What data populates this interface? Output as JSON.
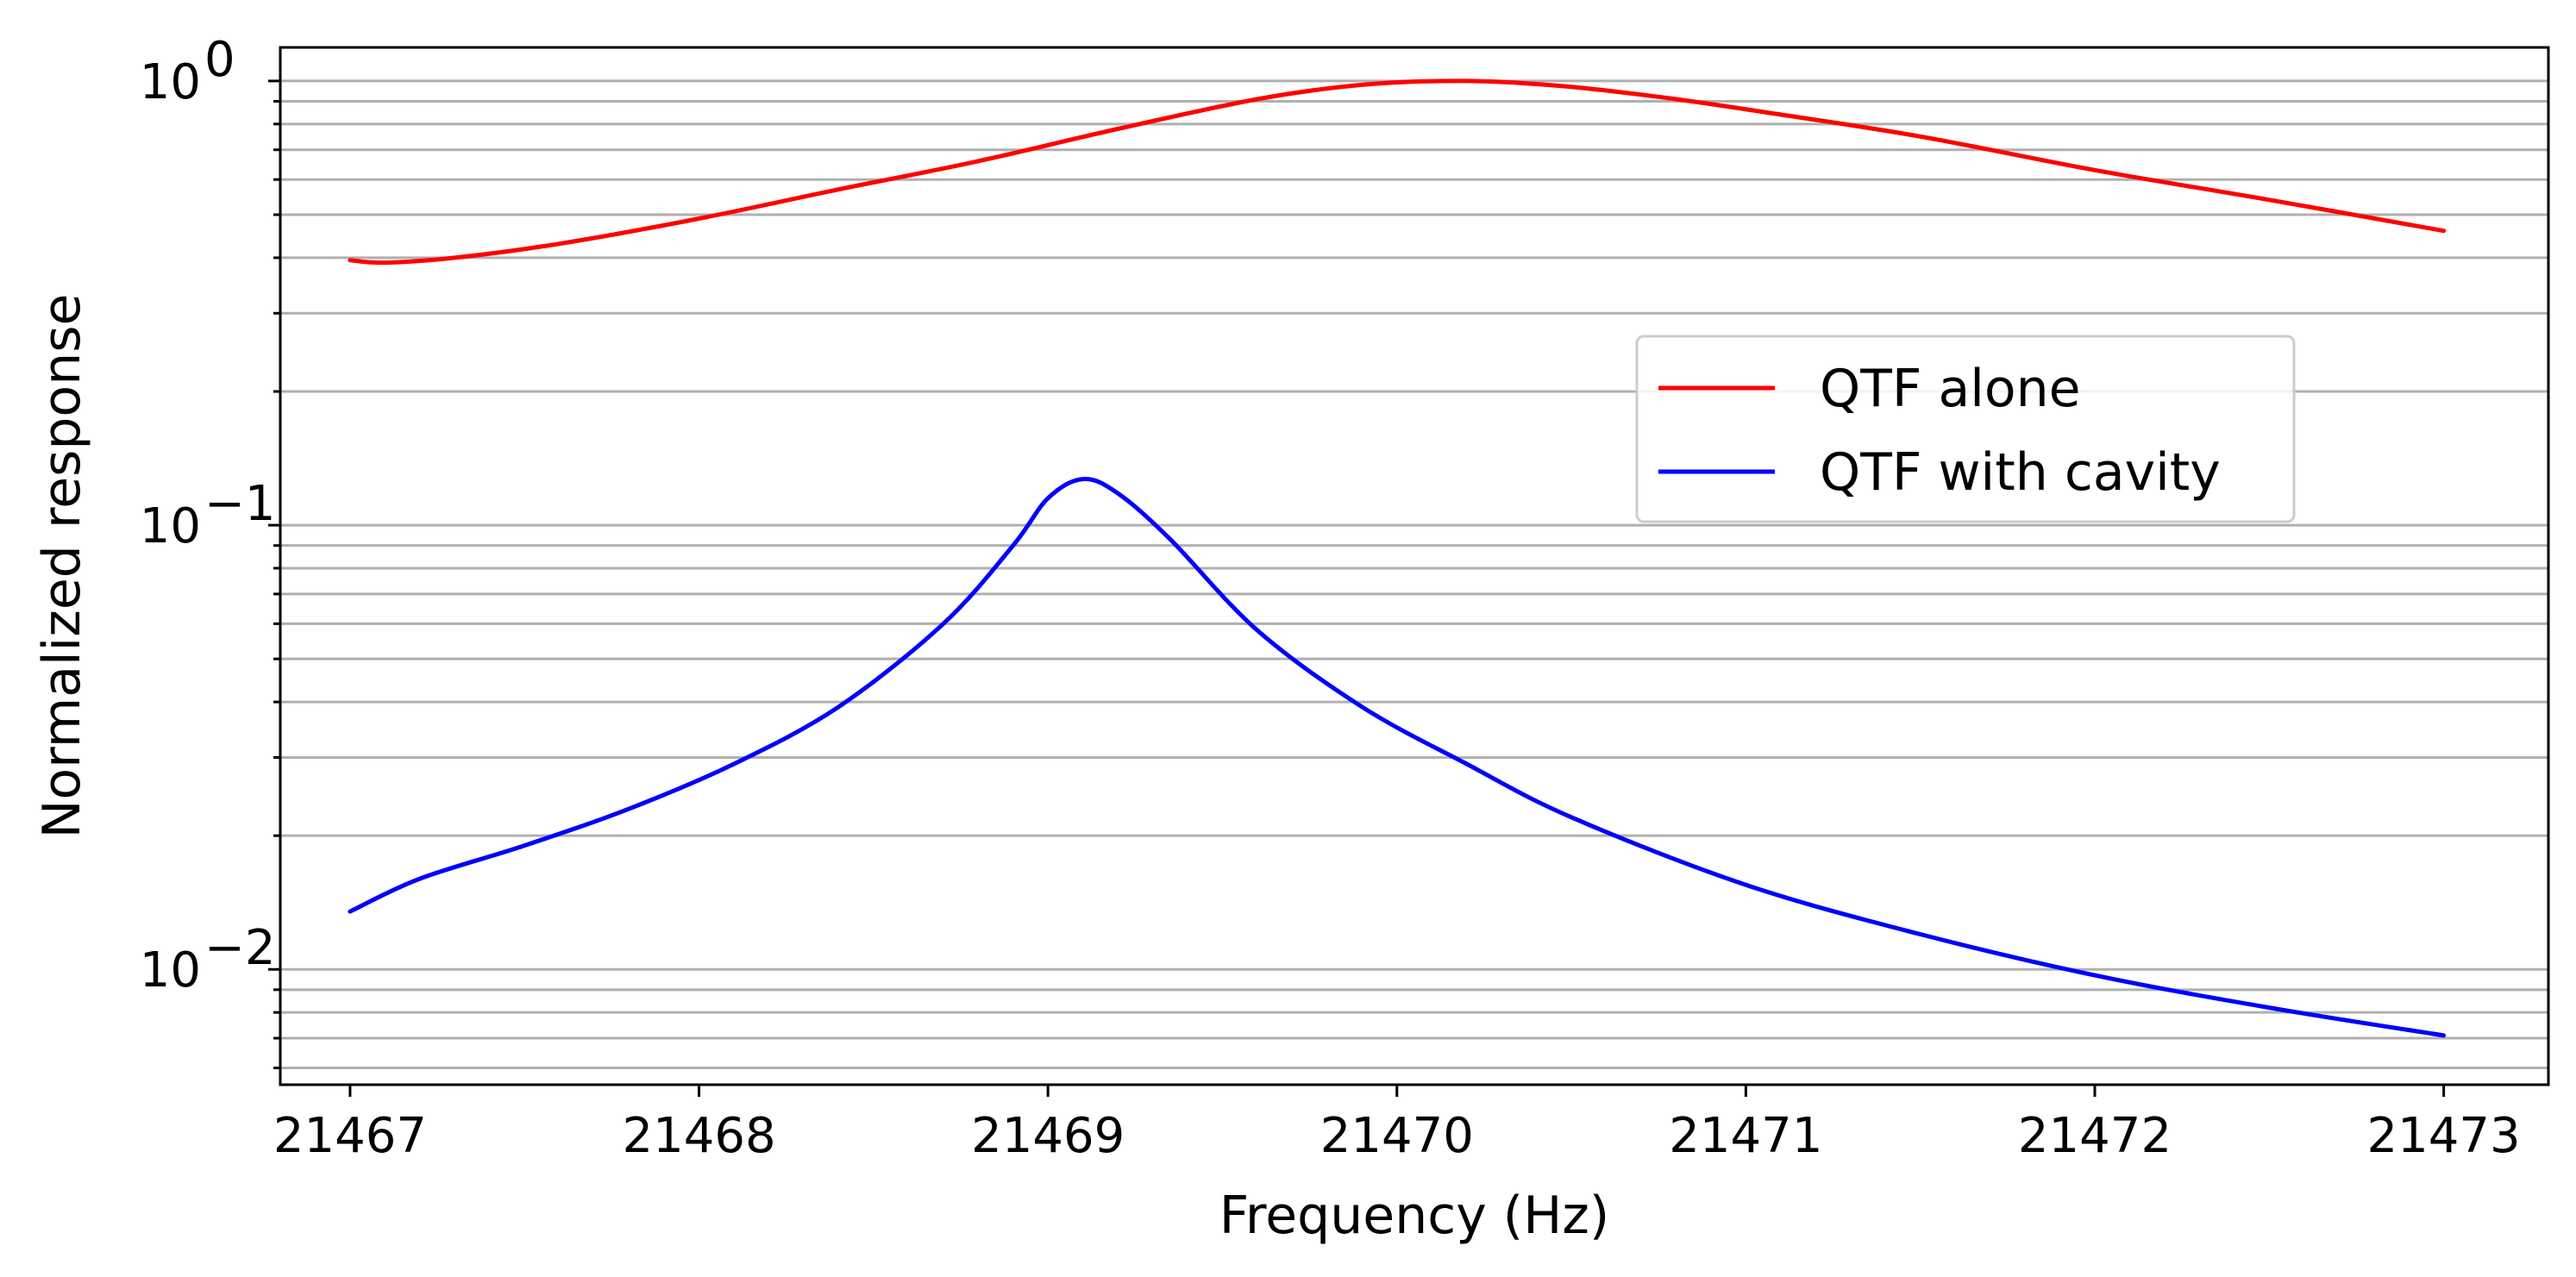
{
  "chart_data": {
    "type": "line",
    "xlabel": "Frequency (Hz)",
    "ylabel": "Normalized response",
    "xlim": [
      21466.8,
      21473.3
    ],
    "ylim": [
      0.0055,
      1.19
    ],
    "yscale": "log",
    "grid": "horizontal, major and minor",
    "legend_position": "center-right",
    "x_ticks": [
      21467,
      21468,
      21469,
      21470,
      21471,
      21472,
      21473
    ],
    "y_ticks": [
      {
        "value": 0.01,
        "base": "10",
        "exp": "−2"
      },
      {
        "value": 0.1,
        "base": "10",
        "exp": "−1"
      },
      {
        "value": 1,
        "base": "10",
        "exp": "0"
      }
    ],
    "series": [
      {
        "name": "QTF alone",
        "color": "#ff0000",
        "x": [
          21467.0,
          21467.1,
          21467.3,
          21467.6,
          21468.0,
          21468.4,
          21468.8,
          21469.2,
          21469.6,
          21469.9,
          21470.2,
          21470.5,
          21470.8,
          21471.1,
          21471.5,
          21472.0,
          21472.5,
          21473.0
        ],
        "values": [
          0.395,
          0.39,
          0.4,
          0.43,
          0.49,
          0.57,
          0.66,
          0.78,
          0.91,
          0.98,
          1.0,
          0.97,
          0.91,
          0.84,
          0.75,
          0.63,
          0.54,
          0.46
        ]
      },
      {
        "name": "QTF with cavity",
        "color": "#0000ff",
        "x": [
          21467.0,
          21467.2,
          21467.5,
          21467.8,
          21468.1,
          21468.4,
          21468.7,
          21468.9,
          21469.0,
          21469.1,
          21469.2,
          21469.35,
          21469.6,
          21469.9,
          21470.2,
          21470.5,
          21471.0,
          21471.5,
          21472.0,
          21472.5,
          21473.0
        ],
        "values": [
          0.0135,
          0.016,
          0.019,
          0.023,
          0.029,
          0.039,
          0.06,
          0.09,
          0.115,
          0.127,
          0.118,
          0.093,
          0.058,
          0.039,
          0.029,
          0.022,
          0.0155,
          0.012,
          0.0097,
          0.0082,
          0.0071
        ]
      }
    ]
  }
}
